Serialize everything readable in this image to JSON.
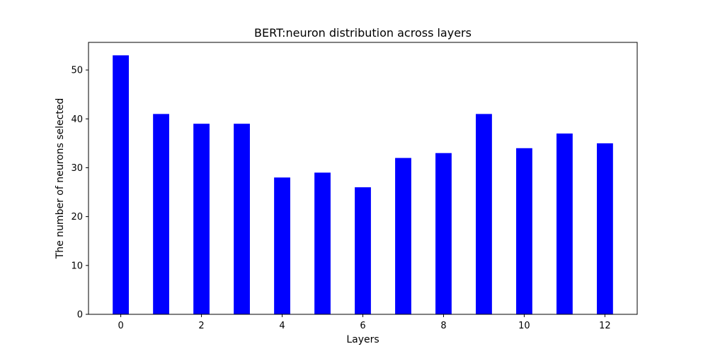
{
  "chart_data": {
    "type": "bar",
    "title": "BERT:neuron distribution across layers",
    "xlabel": "Layers",
    "ylabel": "The number of neurons selected",
    "x": [
      0,
      1,
      2,
      3,
      4,
      5,
      6,
      7,
      8,
      9,
      10,
      11,
      12
    ],
    "values": [
      53,
      41,
      39,
      39,
      28,
      29,
      26,
      32,
      33,
      41,
      34,
      37,
      35
    ],
    "xlim": [
      -0.8,
      12.8
    ],
    "ylim": [
      0,
      55.65
    ],
    "xticks": [
      0,
      2,
      4,
      6,
      8,
      10,
      12
    ],
    "yticks": [
      0,
      10,
      20,
      30,
      40,
      50
    ],
    "bar_color": "#0000ff",
    "grid": false,
    "legend": "none"
  }
}
